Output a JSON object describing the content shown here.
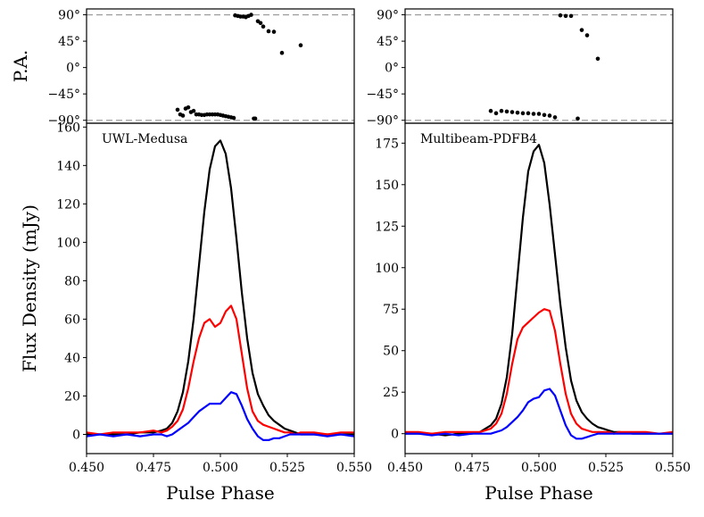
{
  "chart_data": [
    {
      "type": "scatter",
      "panel": "top-left",
      "title": "",
      "ylabel": "P.A.",
      "xlabel": "",
      "xlim": [
        0.45,
        0.55
      ],
      "ylim": [
        -95,
        100
      ],
      "yticks": [
        90,
        45,
        0,
        -45,
        -90
      ],
      "ytick_labels": [
        "90°",
        "45°",
        "0°",
        "−45°",
        "−90°"
      ],
      "reference_lines": [
        90,
        -90
      ],
      "points": {
        "x": [
          0.484,
          0.485,
          0.486,
          0.487,
          0.488,
          0.489,
          0.49,
          0.491,
          0.492,
          0.493,
          0.494,
          0.495,
          0.496,
          0.497,
          0.498,
          0.499,
          0.5,
          0.501,
          0.502,
          0.503,
          0.504,
          0.505,
          0.5055,
          0.5065,
          0.5075,
          0.5085,
          0.5095,
          0.5105,
          0.5115,
          0.5125,
          0.513,
          0.514,
          0.515,
          0.516,
          0.518,
          0.52,
          0.523,
          0.53
        ],
        "y": [
          -72,
          -80,
          -82,
          -70,
          -68,
          -76,
          -74,
          -80,
          -80,
          -81,
          -81,
          -80,
          -80,
          -80,
          -80,
          -80,
          -81,
          -82,
          -83,
          -84,
          -85,
          -86,
          89,
          88,
          87,
          87,
          86,
          88,
          90,
          -87,
          -87,
          79,
          76,
          70,
          62,
          61,
          25,
          38
        ]
      }
    },
    {
      "type": "scatter",
      "panel": "top-right",
      "title": "",
      "ylabel": "",
      "xlabel": "",
      "xlim": [
        0.45,
        0.55
      ],
      "ylim": [
        -95,
        100
      ],
      "yticks": [
        90,
        45,
        0,
        -45,
        -90
      ],
      "ytick_labels": [
        "90°",
        "45°",
        "0°",
        "−45°",
        "−90°"
      ],
      "reference_lines": [
        90,
        -90
      ],
      "points": {
        "x": [
          0.482,
          0.484,
          0.486,
          0.488,
          0.49,
          0.492,
          0.494,
          0.496,
          0.498,
          0.5,
          0.502,
          0.504,
          0.506,
          0.508,
          0.51,
          0.512,
          0.5145,
          0.516,
          0.518,
          0.522
        ],
        "y": [
          -74,
          -78,
          -74,
          -75,
          -76,
          -77,
          -78,
          -78,
          -79,
          -79,
          -81,
          -82,
          -85,
          89,
          88,
          88,
          -87,
          64,
          55,
          15
        ]
      }
    },
    {
      "type": "line",
      "panel": "bottom-left",
      "title": "",
      "annotation": "UWL-Medusa",
      "xlabel": "Pulse Phase",
      "ylabel": "Flux Density (mJy)",
      "xlim": [
        0.45,
        0.55
      ],
      "ylim": [
        -10,
        162
      ],
      "xticks": [
        0.45,
        0.475,
        0.5,
        0.525,
        0.55
      ],
      "xtick_labels": [
        "0.450",
        "0.475",
        "0.500",
        "0.525",
        "0.550"
      ],
      "yticks": [
        0,
        20,
        40,
        60,
        80,
        100,
        120,
        140,
        160
      ],
      "ytick_labels": [
        "0",
        "20",
        "40",
        "60",
        "80",
        "100",
        "120",
        "140",
        "160"
      ],
      "x": [
        0.45,
        0.455,
        0.46,
        0.465,
        0.47,
        0.475,
        0.478,
        0.48,
        0.482,
        0.484,
        0.486,
        0.488,
        0.49,
        0.492,
        0.494,
        0.496,
        0.498,
        0.5,
        0.502,
        0.504,
        0.506,
        0.508,
        0.51,
        0.512,
        0.514,
        0.516,
        0.518,
        0.52,
        0.522,
        0.524,
        0.526,
        0.528,
        0.53,
        0.535,
        0.54,
        0.545,
        0.55
      ],
      "series": [
        {
          "name": "black",
          "color": "#000000",
          "values": [
            0,
            0,
            0,
            0,
            1,
            1,
            2,
            3,
            6,
            12,
            22,
            38,
            60,
            88,
            116,
            138,
            150,
            153,
            146,
            128,
            102,
            74,
            50,
            32,
            21,
            15,
            10,
            7,
            5,
            3,
            2,
            1,
            0,
            0,
            0,
            0,
            0
          ]
        },
        {
          "name": "red",
          "color": "#ff0000",
          "values": [
            1,
            0,
            1,
            1,
            1,
            2,
            1,
            2,
            4,
            7,
            13,
            24,
            38,
            50,
            58,
            60,
            56,
            58,
            64,
            67,
            60,
            42,
            24,
            12,
            7,
            5,
            4,
            3,
            2,
            1,
            1,
            0,
            1,
            1,
            0,
            1,
            1
          ]
        },
        {
          "name": "blue",
          "color": "#0000ff",
          "values": [
            -1,
            0,
            -1,
            0,
            -1,
            0,
            0,
            -1,
            0,
            2,
            4,
            6,
            9,
            12,
            14,
            16,
            16,
            16,
            19,
            22,
            21,
            15,
            8,
            3,
            -1,
            -3,
            -3,
            -2,
            -2,
            -1,
            0,
            0,
            0,
            0,
            -1,
            0,
            -1
          ]
        }
      ]
    },
    {
      "type": "line",
      "panel": "bottom-right",
      "title": "",
      "annotation": "Multibeam-PDFB4",
      "xlabel": "Pulse Phase",
      "ylabel": "",
      "xlim": [
        0.45,
        0.55
      ],
      "ylim": [
        -12,
        187
      ],
      "xticks": [
        0.45,
        0.475,
        0.5,
        0.525,
        0.55
      ],
      "xtick_labels": [
        "0.450",
        "0.475",
        "0.500",
        "0.525",
        "0.550"
      ],
      "yticks": [
        0,
        25,
        50,
        75,
        100,
        125,
        150,
        175
      ],
      "ytick_labels": [
        "0",
        "25",
        "50",
        "75",
        "100",
        "125",
        "150",
        "175"
      ],
      "x": [
        0.45,
        0.455,
        0.46,
        0.465,
        0.47,
        0.475,
        0.478,
        0.48,
        0.482,
        0.484,
        0.486,
        0.488,
        0.49,
        0.492,
        0.494,
        0.496,
        0.498,
        0.5,
        0.502,
        0.504,
        0.506,
        0.508,
        0.51,
        0.512,
        0.514,
        0.516,
        0.518,
        0.52,
        0.522,
        0.524,
        0.526,
        0.528,
        0.53,
        0.535,
        0.54,
        0.545,
        0.55
      ],
      "series": [
        {
          "name": "black",
          "color": "#000000",
          "values": [
            0,
            0,
            0,
            -1,
            0,
            0,
            1,
            3,
            5,
            9,
            18,
            34,
            60,
            95,
            130,
            158,
            170,
            174,
            163,
            138,
            108,
            78,
            52,
            32,
            20,
            13,
            9,
            6,
            4,
            3,
            2,
            1,
            1,
            0,
            0,
            0,
            0
          ]
        },
        {
          "name": "red",
          "color": "#ff0000",
          "values": [
            1,
            1,
            0,
            1,
            1,
            1,
            1,
            2,
            3,
            6,
            12,
            24,
            42,
            57,
            64,
            67,
            70,
            73,
            75,
            74,
            62,
            42,
            24,
            12,
            6,
            3,
            2,
            1,
            1,
            1,
            1,
            0,
            1,
            1,
            1,
            0,
            1
          ]
        },
        {
          "name": "blue",
          "color": "#0000ff",
          "values": [
            0,
            0,
            -1,
            0,
            -1,
            0,
            0,
            0,
            0,
            1,
            2,
            4,
            7,
            10,
            14,
            19,
            21,
            22,
            26,
            27,
            23,
            14,
            5,
            -1,
            -3,
            -3,
            -2,
            -1,
            0,
            0,
            0,
            0,
            0,
            0,
            0,
            0,
            0
          ]
        }
      ]
    }
  ]
}
